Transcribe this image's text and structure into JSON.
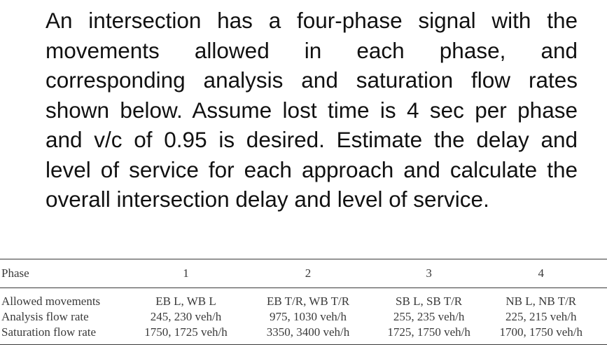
{
  "problem_text": "An intersection has a four-phase signal with the movements allowed in each phase, and corresponding analysis and saturation flow rates shown below. Assume lost time is 4 sec per phase and v/c of 0.95 is desired. Estimate the delay and level of service for each approach and calculate the overall intersection delay and level of service.",
  "table": {
    "header": [
      "Phase",
      "1",
      "2",
      "3",
      "4"
    ],
    "rows": [
      {
        "label": "Allowed movements",
        "cells": [
          "EB L, WB L",
          "EB T/R, WB T/R",
          "SB L, SB T/R",
          "NB L, NB T/R"
        ]
      },
      {
        "label": "Analysis flow rate",
        "cells": [
          "245, 230 veh/h",
          "975, 1030 veh/h",
          "255, 235 veh/h",
          "225, 215 veh/h"
        ]
      },
      {
        "label": "Saturation flow rate",
        "cells": [
          "1750, 1725 veh/h",
          "3350, 3400 veh/h",
          "1725, 1750 veh/h",
          "1700, 1750 veh/h"
        ]
      }
    ]
  }
}
